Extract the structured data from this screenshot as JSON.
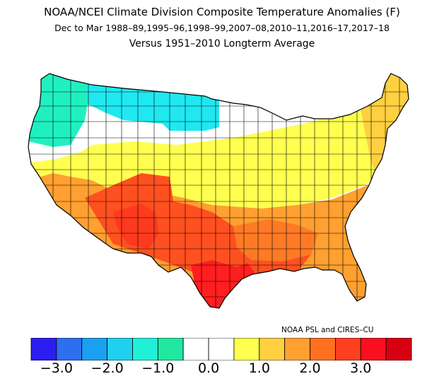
{
  "title": "NOAA/NCEI Climate Division Composite Temperature Anomalies (F)",
  "subtitle": "Dec to Mar  1988–89,1995–96,1998–99,2007–08,2010–11,2016–17,2017–18",
  "comparison": "Versus 1951–2010 Longterm Average",
  "credit": "NOAA PSL and CIRES–CU",
  "legend": {
    "colors": [
      "#2a1ef0",
      "#2e6ff0",
      "#1aa0f0",
      "#20d0f0",
      "#20f0d8",
      "#20e8a0",
      "#ffffff",
      "#ffffff",
      "#ffff50",
      "#ffd040",
      "#ffa030",
      "#ff7020",
      "#ff4020",
      "#f81020",
      "#d80010"
    ],
    "tick_labels": [
      "−3.0",
      "−2.0",
      "−1.0",
      "0.0",
      "1.0",
      "2.0",
      "3.0"
    ]
  },
  "map_regions": [
    {
      "name": "pacific-northwest",
      "color": "#20f0c0"
    },
    {
      "name": "northern-plains",
      "color": "#20e8f0"
    },
    {
      "name": "northwest-interior",
      "color": "#ffffff"
    },
    {
      "name": "upper-midwest",
      "color": "#ffffff"
    },
    {
      "name": "central",
      "color": "#ffff50"
    },
    {
      "name": "northeast",
      "color": "#ffd040"
    },
    {
      "name": "southeast",
      "color": "#ffa030"
    },
    {
      "name": "southwest",
      "color": "#ff5020"
    },
    {
      "name": "gulf-coast",
      "color": "#ff2020"
    }
  ]
}
